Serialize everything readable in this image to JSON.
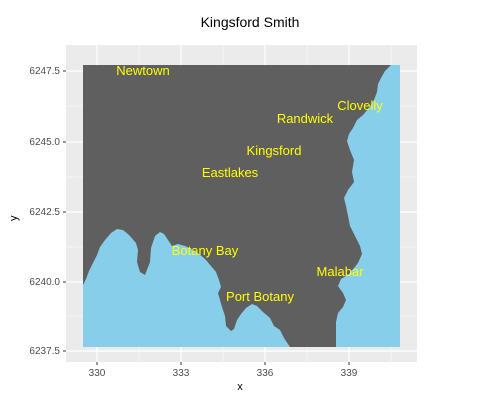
{
  "title": "Kingsford Smith",
  "x_axis": {
    "label": "x",
    "ticks": [
      "330",
      "333",
      "336",
      "339"
    ]
  },
  "y_axis": {
    "label": "y",
    "ticks": [
      "6237.5",
      "6240.0",
      "6242.5",
      "6245.0",
      "6247.5"
    ]
  },
  "colors": {
    "land": "#5f5f5f",
    "water": "#87ceeb",
    "panel": "#ebebeb",
    "label": "#ffff00"
  },
  "places": [
    {
      "name": "Newtown"
    },
    {
      "name": "Clovelly"
    },
    {
      "name": "Randwick"
    },
    {
      "name": "Kingsford"
    },
    {
      "name": "Eastlakes"
    },
    {
      "name": "Botany Bay"
    },
    {
      "name": "Malabar"
    },
    {
      "name": "Port Botany"
    }
  ]
}
